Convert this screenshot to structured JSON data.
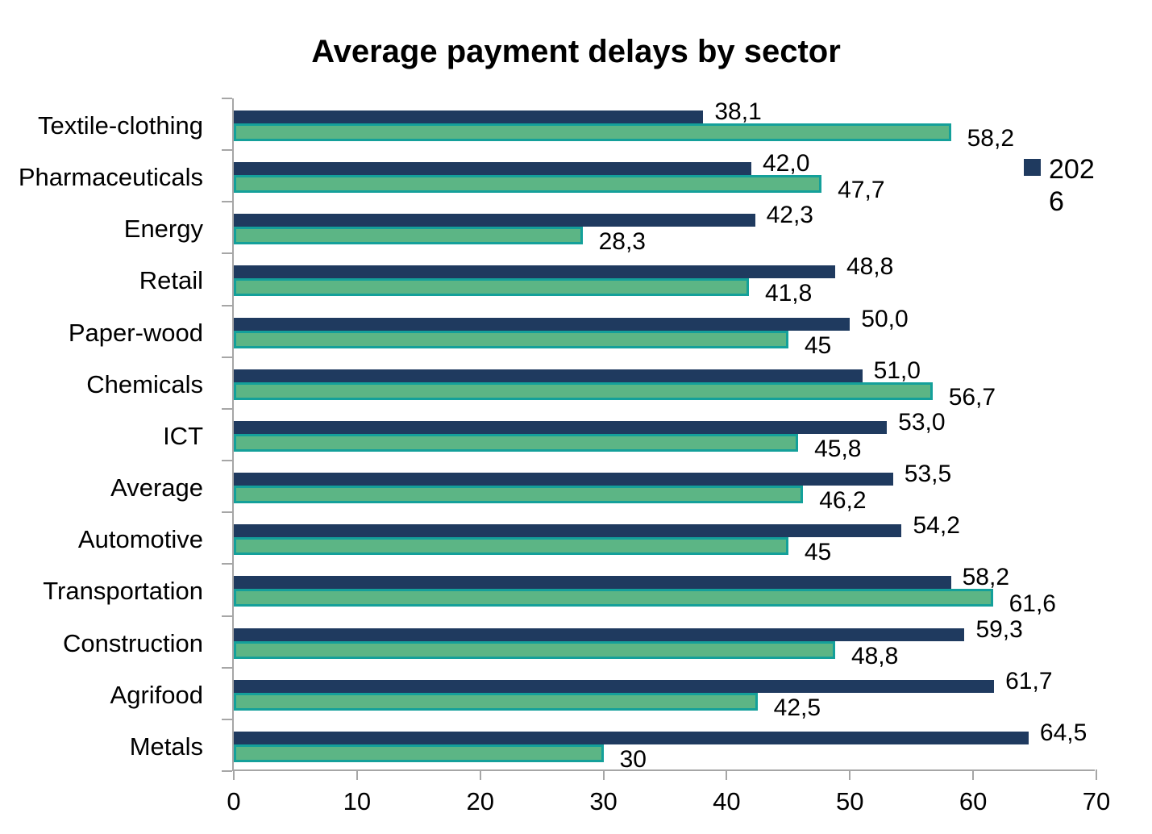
{
  "chart_data": {
    "type": "bar",
    "orientation": "horizontal",
    "title": "Average payment delays by sector",
    "categories": [
      "Textile-clothing",
      "Pharmaceuticals",
      "Energy",
      "Retail",
      "Paper-wood",
      "Chemicals",
      "ICT",
      "Average",
      "Automotive",
      "Transportation",
      "Construction",
      "Agrifood",
      "Metals"
    ],
    "series": [
      {
        "name": "2026",
        "color": "#1F3A5F",
        "values": [
          38.1,
          42.0,
          42.3,
          48.8,
          50.0,
          51.0,
          53.0,
          53.5,
          54.2,
          58.2,
          59.3,
          61.7,
          64.5
        ],
        "labels": [
          "38,1",
          "42,0",
          "42,3",
          "48,8",
          "50,0",
          "51,0",
          "53,0",
          "53,5",
          "54,2",
          "58,2",
          "59,3",
          "61,7",
          "64,5"
        ]
      },
      {
        "name": "",
        "color": "#5CB585",
        "border_color": "#14A09A",
        "values": [
          58.2,
          47.7,
          28.3,
          41.8,
          45,
          56.7,
          45.8,
          46.2,
          45,
          61.6,
          48.8,
          42.5,
          30
        ],
        "labels": [
          "58,2",
          "47,7",
          "28,3",
          "41,8",
          "45",
          "56,7",
          "45,8",
          "46,2",
          "45",
          "61,6",
          "48,8",
          "42,5",
          "30"
        ]
      }
    ],
    "x_axis": {
      "min": 0,
      "max": 70,
      "ticks": [
        0,
        10,
        20,
        30,
        40,
        50,
        60,
        70
      ]
    },
    "y_axis": {
      "gridlines": false
    },
    "legend": {
      "position": "right",
      "entries": [
        {
          "label": "2026",
          "display_lines": [
            "202",
            "6"
          ],
          "color": "#1F3A5F"
        }
      ]
    },
    "decimal_separator": ",",
    "axis_color": "#A6A6A6",
    "background_color": "#FFFFFF",
    "grid": false
  }
}
